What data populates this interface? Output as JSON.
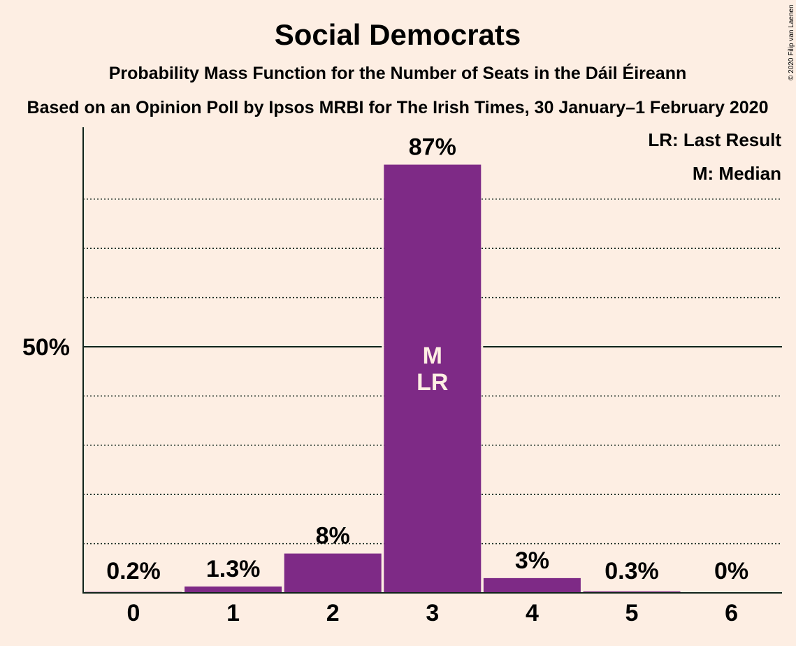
{
  "chart_data": {
    "type": "bar",
    "title": "Social Democrats",
    "subtitle": "Probability Mass Function for the Number of Seats in the Dáil Éireann",
    "subtitle2": "Based on an Opinion Poll by Ipsos MRBI for The Irish Times, 30 January–1 February 2020",
    "categories": [
      "0",
      "1",
      "2",
      "3",
      "4",
      "5",
      "6"
    ],
    "values": [
      0.2,
      1.3,
      8,
      87,
      3,
      0.3,
      0
    ],
    "value_labels": [
      "0.2%",
      "1.3%",
      "8%",
      "87%",
      "3%",
      "0.3%",
      "0%"
    ],
    "ylim": [
      0,
      95
    ],
    "ytick_label": "50%",
    "ytick_value": 50,
    "gridlines": [
      10,
      20,
      30,
      40,
      60,
      70,
      80
    ],
    "bar_color": "#7E2A86",
    "background_color": "#FDEEE3",
    "median_index": 3,
    "last_result_index": 3,
    "median_mark": "M",
    "last_result_mark": "LR",
    "legend": [
      "LR: Last Result",
      "M: Median"
    ],
    "legend_position": "top-right",
    "copyright": "© 2020 Filip van Laenen"
  }
}
